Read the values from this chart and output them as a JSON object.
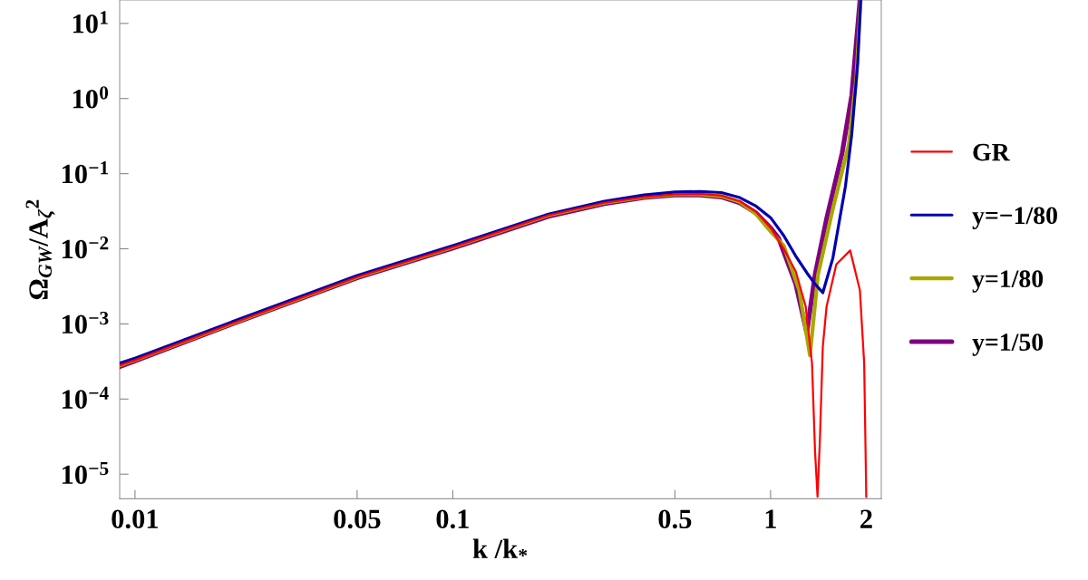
{
  "chart_data": {
    "type": "line",
    "xlabel": "k /k$_{*}$",
    "ylabel": "Ω$_{GW}$/A$_{ζ}$$^{2}$",
    "log": "xy",
    "grid": false,
    "legend": "right",
    "line_style": "solid",
    "marker": "none",
    "xlim": [
      0.00895,
      2.23
    ],
    "ylim": [
      4.7e-06,
      20.5
    ],
    "xticks": [
      0.01,
      0.05,
      0.1,
      0.5,
      1,
      2
    ],
    "yticks": [
      {
        "value": 1e-05,
        "label": "10$^{−5}$"
      },
      {
        "value": 0.0001,
        "label": "10$^{−4}$"
      },
      {
        "value": 0.001,
        "label": "10$^{−3}$"
      },
      {
        "value": 0.01,
        "label": "10$^{−2}$"
      },
      {
        "value": 0.1,
        "label": "10$^{−1}$"
      },
      {
        "value": 1,
        "label": "10$^{0}$"
      },
      {
        "value": 10,
        "label": "10$^{1}$"
      }
    ],
    "series": [
      {
        "name": "GR",
        "color": "#ff0000",
        "x": [
          0.00895,
          0.01,
          0.02,
          0.05,
          0.1,
          0.2,
          0.3,
          0.4,
          0.5,
          0.6,
          0.7,
          0.8,
          0.9,
          1.0,
          1.1,
          1.2,
          1.29,
          1.35,
          1.38,
          1.405,
          1.43,
          1.46,
          1.5,
          1.61,
          1.78,
          1.91,
          1.97,
          1.99,
          2.0
        ],
        "values": [
          0.00028,
          0.00033,
          0.001,
          0.0042,
          0.0105,
          0.028,
          0.041,
          0.049,
          0.053,
          0.054,
          0.051,
          0.043,
          0.031,
          0.019,
          0.01,
          0.005,
          0.0017,
          0.0003,
          2e-05,
          5e-06,
          3e-05,
          0.0005,
          0.0017,
          0.0062,
          0.0095,
          0.0028,
          0.0003,
          2e-05,
          5e-06
        ]
      },
      {
        "name": "y=−1/80",
        "color": "#0000b0",
        "x": [
          0.00895,
          0.01,
          0.02,
          0.05,
          0.1,
          0.2,
          0.3,
          0.4,
          0.5,
          0.6,
          0.7,
          0.8,
          0.9,
          1.0,
          1.1,
          1.2,
          1.3,
          1.38,
          1.46,
          1.57,
          1.72,
          1.8,
          1.88,
          1.92
        ],
        "values": [
          0.0003,
          0.00035,
          0.00105,
          0.0044,
          0.011,
          0.029,
          0.043,
          0.052,
          0.057,
          0.058,
          0.056,
          0.048,
          0.037,
          0.026,
          0.015,
          0.008,
          0.0048,
          0.0034,
          0.0026,
          0.0075,
          0.068,
          0.33,
          3.0,
          20
        ]
      },
      {
        "name": "y=1/80",
        "color": "#a8a800",
        "x": [
          0.00895,
          0.01,
          0.02,
          0.05,
          0.1,
          0.2,
          0.3,
          0.4,
          0.5,
          0.6,
          0.7,
          0.8,
          0.9,
          1.0,
          1.1,
          1.23,
          1.33,
          1.41,
          1.57,
          1.76,
          1.86,
          1.92
        ],
        "values": [
          0.00028,
          0.00033,
          0.001,
          0.0042,
          0.0105,
          0.028,
          0.041,
          0.049,
          0.053,
          0.053,
          0.05,
          0.042,
          0.029,
          0.017,
          0.011,
          0.0028,
          0.00038,
          0.0045,
          0.034,
          0.24,
          1.8,
          20
        ]
      },
      {
        "name": "y=1/50",
        "color": "#800080",
        "x": [
          0.00895,
          0.01,
          0.02,
          0.05,
          0.1,
          0.2,
          0.3,
          0.4,
          0.5,
          0.6,
          0.7,
          0.8,
          0.9,
          1.0,
          1.06,
          1.2,
          1.3,
          1.38,
          1.5,
          1.68,
          1.8,
          1.91
        ],
        "values": [
          0.00027,
          0.00032,
          0.00098,
          0.0041,
          0.0102,
          0.027,
          0.04,
          0.048,
          0.052,
          0.052,
          0.049,
          0.041,
          0.03,
          0.019,
          0.0138,
          0.0034,
          0.00076,
          0.0045,
          0.025,
          0.19,
          1.1,
          20
        ]
      }
    ]
  }
}
